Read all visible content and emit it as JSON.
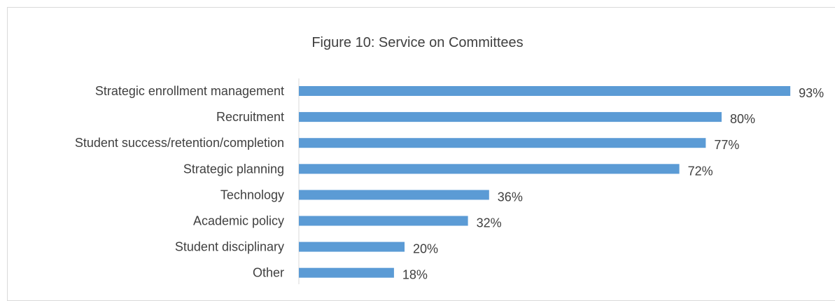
{
  "chart_data": {
    "type": "bar",
    "orientation": "horizontal",
    "title": "Figure 10: Service on Committees",
    "categories": [
      "Strategic enrollment management",
      "Recruitment",
      "Student success/retention/completion",
      "Strategic planning",
      "Technology",
      "Academic policy",
      "Student disciplinary",
      "Other"
    ],
    "values": [
      93,
      80,
      77,
      72,
      36,
      32,
      20,
      18
    ],
    "value_labels": [
      "93%",
      "80%",
      "77%",
      "72%",
      "36%",
      "32%",
      "20%",
      "18%"
    ],
    "xlabel": "",
    "ylabel": "",
    "xlim": [
      0,
      100
    ],
    "grid": false,
    "legend": "none",
    "bar_color": "#5b9bd5",
    "text_color": "#404040",
    "axis_color": "#d9d9d9"
  }
}
